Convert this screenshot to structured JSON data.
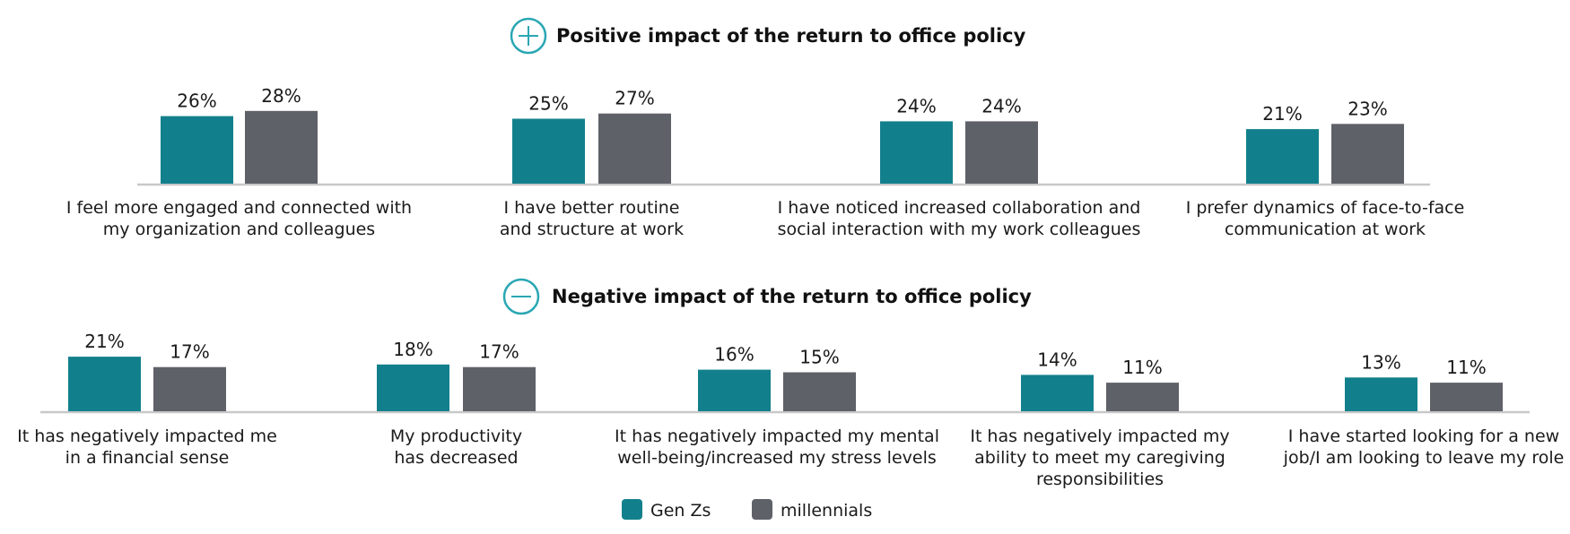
{
  "chart_data": [
    {
      "type": "bar",
      "title": "Positive impact of the return to office policy",
      "title_icon": "plus-circle-icon",
      "categories": [
        [
          "I feel more engaged and connected with",
          "my organization and colleagues"
        ],
        [
          "I have better routine",
          "and structure at work"
        ],
        [
          "I have noticed increased collaboration and",
          "social interaction with my work colleagues"
        ],
        [
          "I prefer dynamics of face-to-face",
          "communication at work"
        ]
      ],
      "series": [
        {
          "name": "Gen Zs",
          "values": [
            26,
            25,
            24,
            21
          ]
        },
        {
          "name": "millennials",
          "values": [
            28,
            27,
            24,
            23
          ]
        }
      ],
      "value_suffix": "%",
      "xlabel": "",
      "ylabel": "",
      "ylim": [
        0,
        30
      ],
      "grid": false
    },
    {
      "type": "bar",
      "title": "Negative impact of the return to office policy",
      "title_icon": "minus-circle-icon",
      "categories": [
        [
          "It has negatively impacted me",
          "in a financial sense"
        ],
        [
          "My productivity",
          "has decreased"
        ],
        [
          "It has negatively impacted my mental",
          "well-being/increased my stress levels"
        ],
        [
          "It has negatively impacted my",
          "ability to meet my caregiving",
          "responsibilities"
        ],
        [
          "I have started looking for a new",
          "job/I am looking to leave my role"
        ]
      ],
      "series": [
        {
          "name": "Gen Zs",
          "values": [
            21,
            18,
            16,
            14,
            13
          ]
        },
        {
          "name": "millennials",
          "values": [
            17,
            17,
            15,
            11,
            11
          ]
        }
      ],
      "value_suffix": "%",
      "xlabel": "",
      "ylabel": "",
      "ylim": [
        0,
        30
      ],
      "grid": false
    }
  ],
  "legend": {
    "placement": "bottom-center",
    "items": [
      {
        "name": "Gen Zs",
        "color": "#12808c"
      },
      {
        "name": "millennials",
        "color": "#5f6168"
      }
    ]
  },
  "colors": {
    "accent": "#2aa7b3",
    "genz": "#12808c",
    "millennials": "#5f6168",
    "axis": "#c8c8c8"
  }
}
